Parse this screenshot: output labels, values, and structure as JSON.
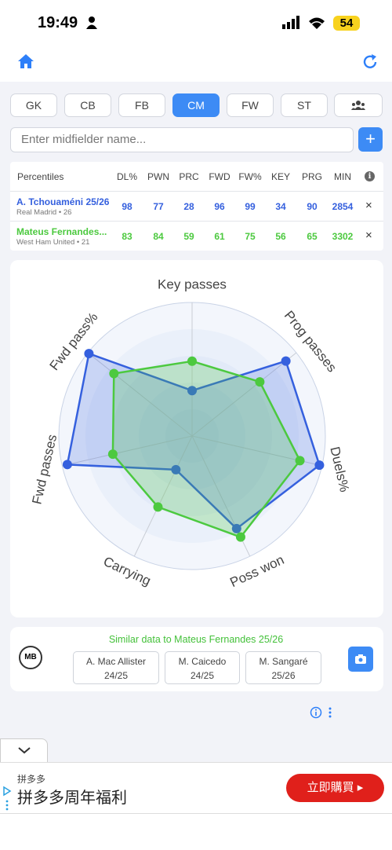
{
  "status_bar": {
    "time": "19:49",
    "battery": "54"
  },
  "tabs": [
    "GK",
    "CB",
    "FB",
    "CM",
    "FW",
    "ST"
  ],
  "search": {
    "placeholder": "Enter midfielder name...",
    "add_button": "+"
  },
  "table": {
    "header": [
      "Percentiles",
      "DL%",
      "PWN",
      "PRC",
      "FWD",
      "FW%",
      "KEY",
      "PRG",
      "MIN"
    ],
    "rows": [
      {
        "name": "A. Tchouaméni 25/26",
        "team": "Real Madrid • 26",
        "color": "#3560de",
        "values": [
          98,
          77,
          28,
          96,
          99,
          34,
          90,
          2854
        ],
        "remove": "×"
      },
      {
        "name": "Mateus Fernandes...",
        "team": "West Ham United • 21",
        "color": "#4cc93f",
        "values": [
          83,
          84,
          59,
          61,
          75,
          56,
          65,
          3302
        ],
        "remove": "×"
      }
    ]
  },
  "radar": {
    "axes": [
      "Key passes",
      "Prog passes",
      "Duels%",
      "Poss won",
      "Carrying",
      "Fwd passes",
      "Fwd pass%"
    ],
    "rlim": [
      0,
      100
    ]
  },
  "similar": {
    "title": "Similar data to Mateus Fernandes 25/26",
    "logo": "MB",
    "players": [
      {
        "name": "A. Mac Allister",
        "season": "24/25"
      },
      {
        "name": "M. Caicedo",
        "season": "24/25"
      },
      {
        "name": "M. Sangaré",
        "season": "25/26"
      }
    ]
  },
  "ad": {
    "brand": "拼多多",
    "headline": "拼多多周年福利",
    "button": "立即購買 ▸"
  }
}
